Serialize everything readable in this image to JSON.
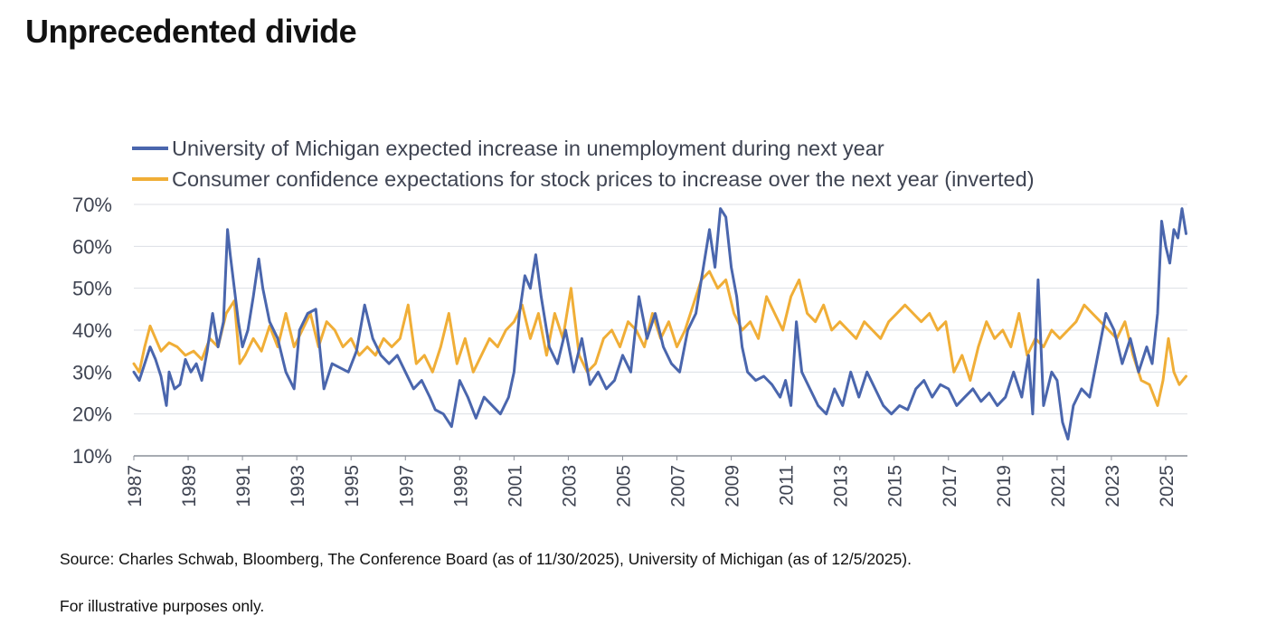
{
  "page": {
    "title": "Unprecedented divide",
    "source": "Source: Charles Schwab, Bloomberg, The Conference Board (as of 11/30/2025), University of Michigan (as of 12/5/2025).",
    "disclaimer": "For illustrative purposes only."
  },
  "chart_data": {
    "type": "line",
    "title": "",
    "xlabel": "",
    "ylabel": "",
    "xlim": [
      1987.0,
      2025.8
    ],
    "ylim": [
      10,
      70
    ],
    "y_ticks": [
      "10%",
      "20%",
      "30%",
      "40%",
      "50%",
      "60%",
      "70%"
    ],
    "x_ticks": [
      "1987",
      "1989",
      "1991",
      "1993",
      "1995",
      "1997",
      "1999",
      "2001",
      "2003",
      "2005",
      "2007",
      "2009",
      "2011",
      "2013",
      "2015",
      "2017",
      "2019",
      "2021",
      "2023",
      "2025"
    ],
    "grid": "horizontal",
    "legend_position": "top-left",
    "series": [
      {
        "name": "University of Michigan expected increase in unemployment during next year",
        "color": "#4a66ad",
        "x": [
          1987.0,
          1987.2,
          1987.4,
          1987.6,
          1987.8,
          1988.0,
          1988.2,
          1988.3,
          1988.5,
          1988.7,
          1988.9,
          1989.1,
          1989.3,
          1989.5,
          1989.7,
          1989.9,
          1990.1,
          1990.3,
          1990.45,
          1990.55,
          1990.7,
          1990.85,
          1991.0,
          1991.2,
          1991.4,
          1991.6,
          1991.75,
          1992.0,
          1992.3,
          1992.6,
          1992.9,
          1993.1,
          1993.4,
          1993.7,
          1994.0,
          1994.3,
          1994.6,
          1994.9,
          1995.2,
          1995.5,
          1995.8,
          1996.1,
          1996.4,
          1996.7,
          1997.0,
          1997.3,
          1997.6,
          1997.9,
          1998.1,
          1998.4,
          1998.7,
          1999.0,
          1999.3,
          1999.6,
          1999.9,
          2000.2,
          2000.5,
          2000.8,
          2001.0,
          2001.2,
          2001.4,
          2001.6,
          2001.8,
          2002.0,
          2002.3,
          2002.6,
          2002.9,
          2003.2,
          2003.5,
          2003.8,
          2004.1,
          2004.4,
          2004.7,
          2005.0,
          2005.3,
          2005.6,
          2005.9,
          2006.2,
          2006.5,
          2006.8,
          2007.1,
          2007.4,
          2007.7,
          2008.0,
          2008.2,
          2008.4,
          2008.6,
          2008.8,
          2009.0,
          2009.2,
          2009.4,
          2009.6,
          2009.9,
          2010.2,
          2010.5,
          2010.8,
          2011.0,
          2011.2,
          2011.4,
          2011.6,
          2011.9,
          2012.2,
          2012.5,
          2012.8,
          2013.1,
          2013.4,
          2013.7,
          2014.0,
          2014.3,
          2014.6,
          2014.9,
          2015.2,
          2015.5,
          2015.8,
          2016.1,
          2016.4,
          2016.7,
          2017.0,
          2017.3,
          2017.6,
          2017.9,
          2018.2,
          2018.5,
          2018.8,
          2019.1,
          2019.4,
          2019.7,
          2019.95,
          2020.1,
          2020.3,
          2020.5,
          2020.8,
          2021.0,
          2021.2,
          2021.4,
          2021.6,
          2021.9,
          2022.2,
          2022.5,
          2022.8,
          2023.1,
          2023.4,
          2023.7,
          2024.0,
          2024.3,
          2024.5,
          2024.7,
          2024.85,
          2025.0,
          2025.15,
          2025.3,
          2025.45,
          2025.6,
          2025.75
        ],
        "values": [
          30,
          28,
          32,
          36,
          33,
          29,
          22,
          30,
          26,
          27,
          33,
          30,
          32,
          28,
          35,
          44,
          36,
          42,
          64,
          58,
          50,
          42,
          36,
          40,
          48,
          57,
          50,
          42,
          38,
          30,
          26,
          40,
          44,
          45,
          26,
          32,
          31,
          30,
          35,
          46,
          38,
          34,
          32,
          34,
          30,
          26,
          28,
          24,
          21,
          20,
          17,
          28,
          24,
          19,
          24,
          22,
          20,
          24,
          30,
          44,
          53,
          50,
          58,
          48,
          36,
          32,
          40,
          30,
          38,
          27,
          30,
          26,
          28,
          34,
          30,
          48,
          38,
          44,
          36,
          32,
          30,
          40,
          44,
          56,
          64,
          55,
          69,
          67,
          55,
          48,
          36,
          30,
          28,
          29,
          27,
          24,
          28,
          22,
          42,
          30,
          26,
          22,
          20,
          26,
          22,
          30,
          24,
          30,
          26,
          22,
          20,
          22,
          21,
          26,
          28,
          24,
          27,
          26,
          22,
          24,
          26,
          23,
          25,
          22,
          24,
          30,
          24,
          34,
          20,
          52,
          22,
          30,
          28,
          18,
          14,
          22,
          26,
          24,
          34,
          44,
          40,
          32,
          38,
          30,
          36,
          32,
          44,
          66,
          60,
          56,
          64,
          62,
          69,
          63
        ]
      },
      {
        "name": "Consumer confidence expectations for stock prices to increase over the next year (inverted)",
        "color": "#f0ae37",
        "x": [
          1987.0,
          1987.2,
          1987.4,
          1987.6,
          1987.8,
          1988.0,
          1988.3,
          1988.6,
          1988.9,
          1989.2,
          1989.5,
          1989.8,
          1990.1,
          1990.4,
          1990.7,
          1990.9,
          1991.1,
          1991.4,
          1991.7,
          1992.0,
          1992.3,
          1992.6,
          1992.9,
          1993.2,
          1993.5,
          1993.8,
          1994.1,
          1994.4,
          1994.7,
          1995.0,
          1995.3,
          1995.6,
          1995.9,
          1996.2,
          1996.5,
          1996.8,
          1997.1,
          1997.4,
          1997.7,
          1998.0,
          1998.3,
          1998.6,
          1998.9,
          1999.2,
          1999.5,
          1999.8,
          2000.1,
          2000.4,
          2000.7,
          2001.0,
          2001.3,
          2001.6,
          2001.9,
          2002.2,
          2002.5,
          2002.8,
          2003.1,
          2003.4,
          2003.7,
          2004.0,
          2004.3,
          2004.6,
          2004.9,
          2005.2,
          2005.5,
          2005.8,
          2006.1,
          2006.4,
          2006.7,
          2007.0,
          2007.3,
          2007.6,
          2007.9,
          2008.2,
          2008.5,
          2008.8,
          2009.1,
          2009.4,
          2009.7,
          2010.0,
          2010.3,
          2010.6,
          2010.9,
          2011.2,
          2011.5,
          2011.8,
          2012.1,
          2012.4,
          2012.7,
          2013.0,
          2013.3,
          2013.6,
          2013.9,
          2014.2,
          2014.5,
          2014.8,
          2015.1,
          2015.4,
          2015.7,
          2016.0,
          2016.3,
          2016.6,
          2016.9,
          2017.2,
          2017.5,
          2017.8,
          2018.1,
          2018.4,
          2018.7,
          2019.0,
          2019.3,
          2019.6,
          2019.9,
          2020.2,
          2020.5,
          2020.8,
          2021.1,
          2021.4,
          2021.7,
          2022.0,
          2022.3,
          2022.6,
          2022.9,
          2023.2,
          2023.5,
          2023.8,
          2024.1,
          2024.4,
          2024.7,
          2024.9,
          2025.1,
          2025.3,
          2025.5,
          2025.75
        ],
        "values": [
          32,
          30,
          36,
          41,
          38,
          35,
          37,
          36,
          34,
          35,
          33,
          38,
          36,
          44,
          47,
          32,
          34,
          38,
          35,
          41,
          36,
          44,
          36,
          40,
          44,
          36,
          42,
          40,
          36,
          38,
          34,
          36,
          34,
          38,
          36,
          38,
          46,
          32,
          34,
          30,
          36,
          44,
          32,
          38,
          30,
          34,
          38,
          36,
          40,
          42,
          46,
          38,
          44,
          34,
          44,
          38,
          50,
          34,
          30,
          32,
          38,
          40,
          36,
          42,
          40,
          36,
          44,
          38,
          42,
          36,
          40,
          46,
          52,
          54,
          50,
          52,
          44,
          40,
          42,
          38,
          48,
          44,
          40,
          48,
          52,
          44,
          42,
          46,
          40,
          42,
          40,
          38,
          42,
          40,
          38,
          42,
          44,
          46,
          44,
          42,
          44,
          40,
          42,
          30,
          34,
          28,
          36,
          42,
          38,
          40,
          36,
          44,
          34,
          38,
          36,
          40,
          38,
          40,
          42,
          46,
          44,
          42,
          40,
          38,
          42,
          34,
          28,
          27,
          22,
          28,
          38,
          30,
          27,
          29
        ]
      }
    ]
  }
}
